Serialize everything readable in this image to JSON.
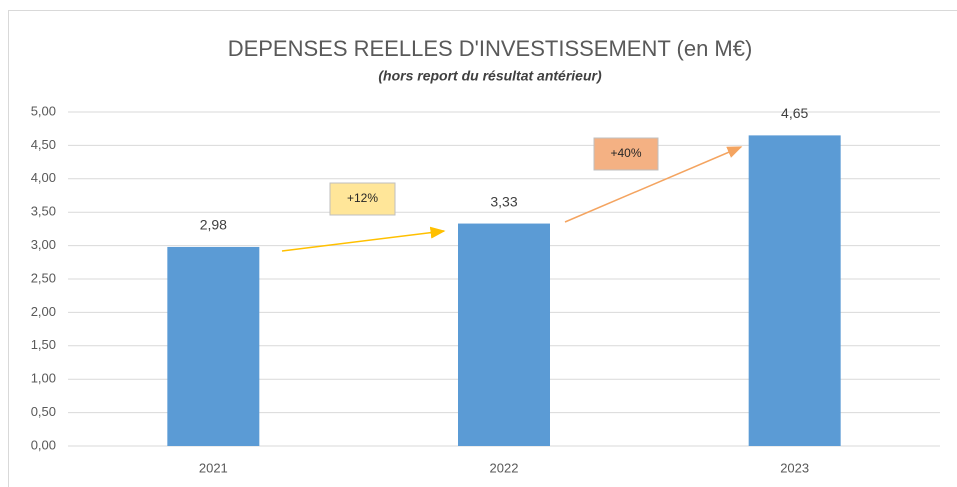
{
  "chart_data": {
    "type": "bar",
    "title": "DEPENSES REELLES D'INVESTISSEMENT (en M€)",
    "subtitle": "(hors report du résultat antérieur)",
    "categories": [
      "2021",
      "2022",
      "2023"
    ],
    "values": [
      2.98,
      3.33,
      4.65
    ],
    "value_labels": [
      "2,98",
      "3,33",
      "4,65"
    ],
    "color": "#5b9bd5",
    "ylim": [
      0,
      5
    ],
    "yticks": [
      {
        "value": 0,
        "label": "0,00"
      },
      {
        "value": 0.5,
        "label": "0,50"
      },
      {
        "value": 1,
        "label": "1,00"
      },
      {
        "value": 1.5,
        "label": "1,50"
      },
      {
        "value": 2,
        "label": "2,00"
      },
      {
        "value": 2.5,
        "label": "2,50"
      },
      {
        "value": 3,
        "label": "3,00"
      },
      {
        "value": 3.5,
        "label": "3,50"
      },
      {
        "value": 4,
        "label": "4,00"
      },
      {
        "value": 4.5,
        "label": "4,50"
      },
      {
        "value": 5,
        "label": "5,00"
      }
    ],
    "grid": true,
    "annotations": [
      "+12%",
      "+40%"
    ]
  }
}
